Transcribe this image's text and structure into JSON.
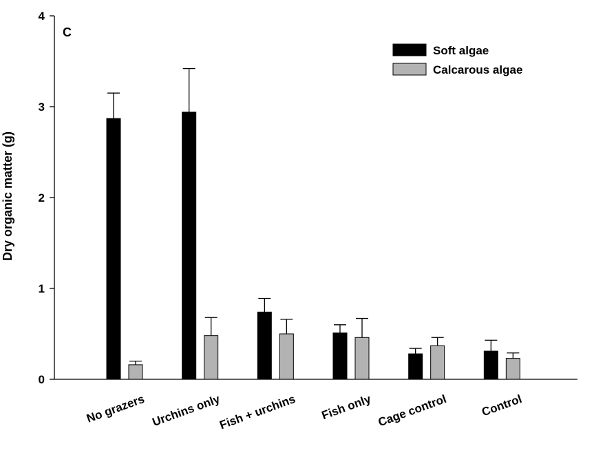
{
  "chart_data": {
    "type": "bar",
    "panel_label": "C",
    "title": "",
    "xlabel": "",
    "ylabel": "Dry organic matter (g)",
    "ylim": [
      0,
      4
    ],
    "yticks": [
      "0",
      "1",
      "2",
      "3",
      "4"
    ],
    "categories": [
      "No grazers",
      "Urchins only",
      "Fish + urchins",
      "Fish only",
      "Cage control",
      "Control"
    ],
    "legend_position": "top-right",
    "grid": false,
    "series": [
      {
        "name": "Soft algae",
        "color": "#000000",
        "values": [
          2.87,
          2.94,
          0.74,
          0.51,
          0.28,
          0.31
        ],
        "errors": [
          0.28,
          0.48,
          0.15,
          0.09,
          0.06,
          0.12
        ]
      },
      {
        "name": "Calcarous algae",
        "color": "#b3b3b3",
        "values": [
          0.16,
          0.48,
          0.5,
          0.46,
          0.37,
          0.23
        ],
        "errors": [
          0.04,
          0.2,
          0.16,
          0.21,
          0.09,
          0.06
        ]
      }
    ]
  }
}
